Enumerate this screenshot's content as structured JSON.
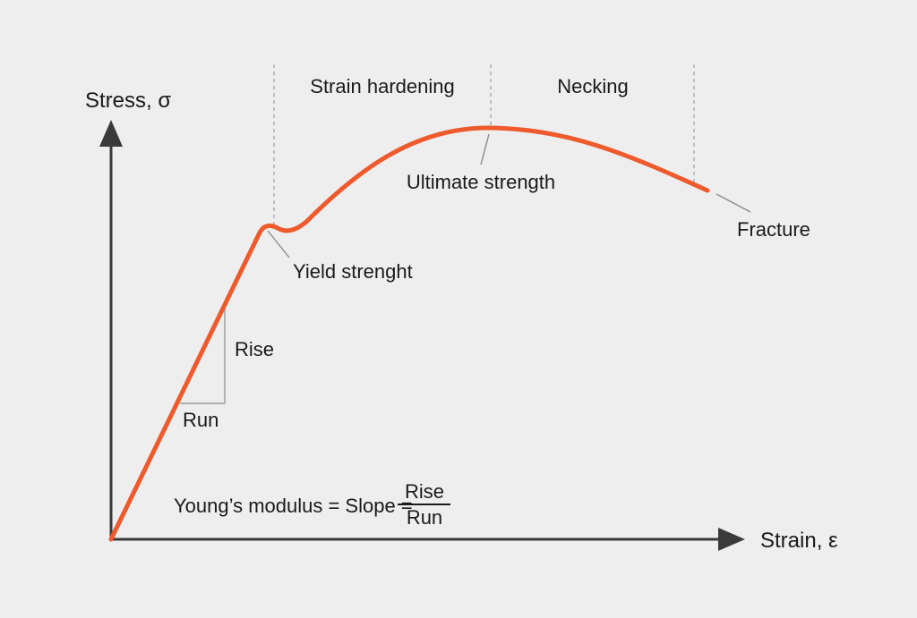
{
  "axes": {
    "y_label": "Stress, σ",
    "x_label": "Strain, ε"
  },
  "regions": {
    "strain_hardening": "Strain hardening",
    "necking": "Necking"
  },
  "points": {
    "yield": "Yield strenght",
    "ultimate": "Ultimate strength",
    "fracture": "Fracture"
  },
  "slope": {
    "rise": "Rise",
    "run": "Run"
  },
  "formula": {
    "lhs": "Young’s modulus = Slope =",
    "numerator": "Rise",
    "denominator": "Run"
  },
  "colors": {
    "curve": "#ee5a2c",
    "axis": "#3a3a3a",
    "background": "#eeeeee"
  }
}
